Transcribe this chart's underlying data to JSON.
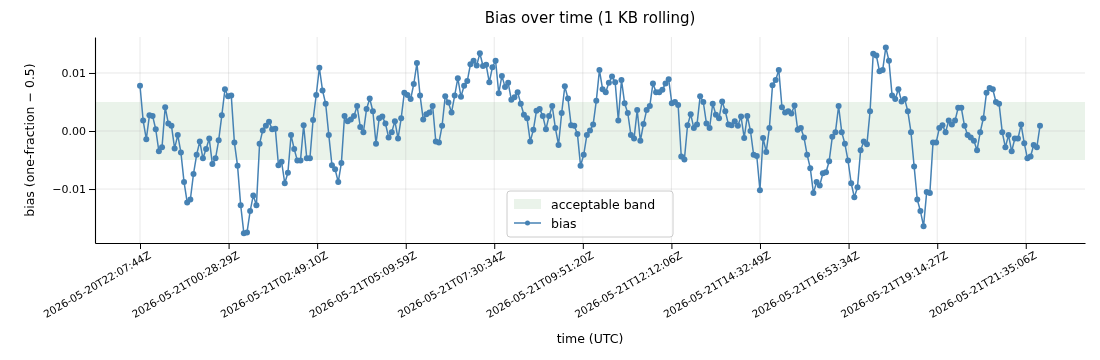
{
  "chart_data": {
    "type": "line",
    "title": "Bias over time (1 KB rolling)",
    "xlabel": "time (UTC)",
    "ylabel": "bias (one-fraction − 0.5)",
    "x": [
      "2026-05-20T22:07:44",
      "2026-05-20T22:12:44",
      "2026-05-20T22:17:44",
      "2026-05-20T22:22:44",
      "2026-05-20T22:27:44",
      "2026-05-20T22:32:44",
      "2026-05-20T22:37:44",
      "2026-05-20T22:42:44",
      "2026-05-20T22:47:44",
      "2026-05-20T22:52:44",
      "2026-05-20T22:57:44",
      "2026-05-20T23:02:44",
      "2026-05-20T23:07:44",
      "2026-05-20T23:12:44",
      "2026-05-20T23:17:44",
      "2026-05-20T23:22:44",
      "2026-05-20T23:27:44",
      "2026-05-20T23:32:44",
      "2026-05-20T23:37:44",
      "2026-05-20T23:42:44",
      "2026-05-20T23:47:44",
      "2026-05-20T23:52:44",
      "2026-05-20T23:57:44",
      "2026-05-21T00:02:44",
      "2026-05-21T00:07:44",
      "2026-05-21T00:12:44",
      "2026-05-21T00:17:44",
      "2026-05-21T00:22:44",
      "2026-05-21T00:27:44",
      "2026-05-21T00:32:44",
      "2026-05-21T00:37:44",
      "2026-05-21T00:42:44",
      "2026-05-21T00:47:44",
      "2026-05-21T00:52:44",
      "2026-05-21T00:57:44",
      "2026-05-21T01:02:44",
      "2026-05-21T01:07:44",
      "2026-05-21T01:12:44",
      "2026-05-21T01:17:44",
      "2026-05-21T01:22:44",
      "2026-05-21T01:27:44",
      "2026-05-21T01:32:44",
      "2026-05-21T01:37:44",
      "2026-05-21T01:42:44",
      "2026-05-21T01:47:44",
      "2026-05-21T01:52:44",
      "2026-05-21T01:57:44",
      "2026-05-21T02:02:44",
      "2026-05-21T02:07:44",
      "2026-05-21T02:12:44",
      "2026-05-21T02:17:44",
      "2026-05-21T02:22:44",
      "2026-05-21T02:27:44",
      "2026-05-21T02:32:44",
      "2026-05-21T02:37:44",
      "2026-05-21T02:42:44",
      "2026-05-21T02:47:44",
      "2026-05-21T02:52:44",
      "2026-05-21T02:57:44",
      "2026-05-21T03:02:44",
      "2026-05-21T03:07:44",
      "2026-05-21T03:12:44",
      "2026-05-21T03:17:44",
      "2026-05-21T03:22:44",
      "2026-05-21T03:27:44",
      "2026-05-21T03:32:44",
      "2026-05-21T03:37:44",
      "2026-05-21T03:42:44",
      "2026-05-21T03:47:44",
      "2026-05-21T03:52:44",
      "2026-05-21T03:57:44",
      "2026-05-21T04:02:44",
      "2026-05-21T04:07:44",
      "2026-05-21T04:12:44",
      "2026-05-21T04:17:44",
      "2026-05-21T04:22:44",
      "2026-05-21T04:27:44",
      "2026-05-21T04:32:44",
      "2026-05-21T04:37:44",
      "2026-05-21T04:42:44",
      "2026-05-21T04:47:44",
      "2026-05-21T04:52:44",
      "2026-05-21T04:57:44",
      "2026-05-21T05:02:44",
      "2026-05-21T05:07:44",
      "2026-05-21T05:12:44",
      "2026-05-21T05:17:44",
      "2026-05-21T05:22:44",
      "2026-05-21T05:27:44",
      "2026-05-21T05:32:44",
      "2026-05-21T05:37:44",
      "2026-05-21T05:42:44",
      "2026-05-21T05:47:44",
      "2026-05-21T05:52:44",
      "2026-05-21T05:57:44",
      "2026-05-21T06:02:44",
      "2026-05-21T06:07:44",
      "2026-05-21T06:12:44",
      "2026-05-21T06:17:44",
      "2026-05-21T06:22:44",
      "2026-05-21T06:27:44",
      "2026-05-21T06:32:44",
      "2026-05-21T06:37:44",
      "2026-05-21T06:42:44",
      "2026-05-21T06:47:44",
      "2026-05-21T06:52:44",
      "2026-05-21T06:57:44",
      "2026-05-21T07:02:44",
      "2026-05-21T07:07:44",
      "2026-05-21T07:12:44",
      "2026-05-21T07:17:44",
      "2026-05-21T07:22:44",
      "2026-05-21T07:27:44",
      "2026-05-21T07:32:44",
      "2026-05-21T07:37:44",
      "2026-05-21T07:42:44",
      "2026-05-21T07:47:44",
      "2026-05-21T07:52:44",
      "2026-05-21T07:57:44",
      "2026-05-21T08:02:44",
      "2026-05-21T08:07:44",
      "2026-05-21T08:12:44",
      "2026-05-21T08:17:44",
      "2026-05-21T08:22:44",
      "2026-05-21T08:27:44",
      "2026-05-21T08:32:44",
      "2026-05-21T08:37:44",
      "2026-05-21T08:42:44",
      "2026-05-21T08:47:44",
      "2026-05-21T08:52:44",
      "2026-05-21T08:57:44",
      "2026-05-21T09:02:44",
      "2026-05-21T09:07:44",
      "2026-05-21T09:12:44",
      "2026-05-21T09:17:44",
      "2026-05-21T09:22:44",
      "2026-05-21T09:27:44",
      "2026-05-21T09:32:44",
      "2026-05-21T09:37:44",
      "2026-05-21T09:42:44",
      "2026-05-21T09:47:44",
      "2026-05-21T09:52:44",
      "2026-05-21T09:57:44",
      "2026-05-21T10:02:44",
      "2026-05-21T10:07:44",
      "2026-05-21T10:12:44",
      "2026-05-21T10:17:44",
      "2026-05-21T10:22:44",
      "2026-05-21T10:27:44",
      "2026-05-21T10:32:44",
      "2026-05-21T10:37:44",
      "2026-05-21T10:42:44",
      "2026-05-21T10:47:44",
      "2026-05-21T10:52:44",
      "2026-05-21T10:57:44",
      "2026-05-21T11:02:44",
      "2026-05-21T11:07:44",
      "2026-05-21T11:12:44",
      "2026-05-21T11:17:44",
      "2026-05-21T11:22:44",
      "2026-05-21T11:27:44",
      "2026-05-21T11:32:44",
      "2026-05-21T11:37:44",
      "2026-05-21T11:42:44",
      "2026-05-21T11:47:44",
      "2026-05-21T11:52:44",
      "2026-05-21T11:57:44",
      "2026-05-21T12:02:44",
      "2026-05-21T12:07:44",
      "2026-05-21T12:12:44",
      "2026-05-21T12:17:44",
      "2026-05-21T12:22:44",
      "2026-05-21T12:27:44",
      "2026-05-21T12:32:44",
      "2026-05-21T12:37:44",
      "2026-05-21T12:42:44",
      "2026-05-21T12:47:44",
      "2026-05-21T12:52:44",
      "2026-05-21T12:57:44",
      "2026-05-21T13:02:44",
      "2026-05-21T13:07:44",
      "2026-05-21T13:12:44",
      "2026-05-21T13:17:44",
      "2026-05-21T13:22:44",
      "2026-05-21T13:27:44",
      "2026-05-21T13:32:44",
      "2026-05-21T13:37:44",
      "2026-05-21T13:42:44",
      "2026-05-21T13:47:44",
      "2026-05-21T13:52:44",
      "2026-05-21T13:57:44",
      "2026-05-21T14:02:44",
      "2026-05-21T14:07:44",
      "2026-05-21T14:12:44",
      "2026-05-21T14:17:44",
      "2026-05-21T14:22:44",
      "2026-05-21T14:27:44",
      "2026-05-21T14:32:44",
      "2026-05-21T14:37:44",
      "2026-05-21T14:42:44",
      "2026-05-21T14:47:44",
      "2026-05-21T14:52:44",
      "2026-05-21T14:57:44",
      "2026-05-21T15:02:44",
      "2026-05-21T15:07:44",
      "2026-05-21T15:12:44",
      "2026-05-21T15:17:44",
      "2026-05-21T15:22:44",
      "2026-05-21T15:27:44",
      "2026-05-21T15:32:44",
      "2026-05-21T15:37:44",
      "2026-05-21T15:42:44",
      "2026-05-21T15:47:44",
      "2026-05-21T15:52:44",
      "2026-05-21T15:57:44",
      "2026-05-21T16:02:44",
      "2026-05-21T16:07:44",
      "2026-05-21T16:12:44",
      "2026-05-21T16:17:44",
      "2026-05-21T16:22:44",
      "2026-05-21T16:27:44",
      "2026-05-21T16:32:44",
      "2026-05-21T16:37:44",
      "2026-05-21T16:42:44",
      "2026-05-21T16:47:44",
      "2026-05-21T16:52:44",
      "2026-05-21T16:57:44",
      "2026-05-21T17:02:44",
      "2026-05-21T17:07:44",
      "2026-05-21T17:12:44",
      "2026-05-21T17:17:44",
      "2026-05-21T17:22:44",
      "2026-05-21T17:27:44",
      "2026-05-21T17:32:44",
      "2026-05-21T17:37:44",
      "2026-05-21T17:42:44",
      "2026-05-21T17:47:44",
      "2026-05-21T17:52:44",
      "2026-05-21T17:57:44",
      "2026-05-21T18:02:44",
      "2026-05-21T18:07:44",
      "2026-05-21T18:12:44",
      "2026-05-21T18:17:44",
      "2026-05-21T18:22:44",
      "2026-05-21T18:27:44",
      "2026-05-21T18:32:44",
      "2026-05-21T18:37:44",
      "2026-05-21T18:42:44",
      "2026-05-21T18:47:44",
      "2026-05-21T18:52:44",
      "2026-05-21T18:57:44",
      "2026-05-21T19:02:44",
      "2026-05-21T19:07:44",
      "2026-05-21T19:12:44",
      "2026-05-21T19:17:44",
      "2026-05-21T19:22:44",
      "2026-05-21T19:27:44",
      "2026-05-21T19:32:44",
      "2026-05-21T19:37:44",
      "2026-05-21T19:42:44",
      "2026-05-21T19:47:44",
      "2026-05-21T19:52:44",
      "2026-05-21T19:57:44",
      "2026-05-21T20:02:44",
      "2026-05-21T20:07:44",
      "2026-05-21T20:12:44",
      "2026-05-21T20:17:44",
      "2026-05-21T20:22:44",
      "2026-05-21T20:27:44",
      "2026-05-21T20:32:44",
      "2026-05-21T20:37:44",
      "2026-05-21T20:42:44",
      "2026-05-21T20:47:44",
      "2026-05-21T20:52:44",
      "2026-05-21T20:57:44",
      "2026-05-21T21:02:44",
      "2026-05-21T21:07:44",
      "2026-05-21T21:12:44",
      "2026-05-21T21:17:44",
      "2026-05-21T21:22:44",
      "2026-05-21T21:27:44",
      "2026-05-21T21:32:44",
      "2026-05-21T21:37:44",
      "2026-05-21T21:42:44",
      "2026-05-21T21:47:44",
      "2026-05-21T21:52:44",
      "2026-05-21T21:57:44"
    ],
    "series": [
      {
        "name": "bias",
        "color": "#4682b4",
        "values": [
          0.0078,
          0.0018,
          -0.0014,
          0.0027,
          0.0026,
          0.0003,
          -0.0035,
          -0.0028,
          0.0041,
          0.0013,
          0.0009,
          -0.003,
          -0.0007,
          -0.0037,
          -0.0088,
          -0.0123,
          -0.0118,
          -0.0074,
          -0.0041,
          -0.0018,
          -0.0047,
          -0.0031,
          -0.0013,
          -0.0057,
          -0.0047,
          -0.0016,
          0.0027,
          0.0072,
          0.006,
          0.0061,
          -0.002,
          -0.006,
          -0.0128,
          -0.0176,
          -0.0175,
          -0.0138,
          -0.0111,
          -0.0128,
          -0.0022,
          0.0001,
          0.0009,
          0.0016,
          0.0003,
          0.0004,
          -0.0059,
          -0.0053,
          -0.009,
          -0.0072,
          -0.0007,
          -0.0031,
          -0.0051,
          -0.0051,
          0.001,
          -0.0047,
          -0.0047,
          0.0019,
          0.0062,
          0.0109,
          0.007,
          0.0047,
          -0.0007,
          -0.0059,
          -0.0066,
          -0.0088,
          -0.0055,
          0.0026,
          0.0017,
          0.002,
          0.0026,
          0.0043,
          0.0007,
          -0.0002,
          0.0038,
          0.0056,
          0.0034,
          -0.0022,
          0.0022,
          0.0025,
          0.0013,
          -0.0011,
          -0.0002,
          0.0017,
          -0.0013,
          0.0022,
          0.0066,
          0.0062,
          0.0055,
          0.0081,
          0.0117,
          0.0061,
          0.002,
          0.0029,
          0.0032,
          0.0043,
          -0.0018,
          -0.002,
          0.0009,
          0.006,
          0.0049,
          0.0032,
          0.0061,
          0.0091,
          0.0059,
          0.0078,
          0.0086,
          0.0115,
          0.0121,
          0.0113,
          0.0134,
          0.0112,
          0.0114,
          0.0084,
          0.011,
          0.0121,
          0.0065,
          0.0095,
          0.0076,
          0.0083,
          0.0054,
          0.0058,
          0.0067,
          0.0047,
          0.0028,
          0.0022,
          -0.0018,
          0.0002,
          0.0035,
          0.0038,
          0.0026,
          0.0003,
          0.0026,
          0.0043,
          0.0005,
          -0.0024,
          0.0031,
          0.0077,
          0.0056,
          0.001,
          0.0009,
          -0.0005,
          -0.006,
          -0.0041,
          -0.0007,
          0.0001,
          0.0011,
          0.0052,
          0.0105,
          0.0072,
          0.0067,
          0.0083,
          0.0094,
          0.0084,
          0.0018,
          0.0088,
          0.0048,
          0.0031,
          -0.0007,
          -0.0013,
          0.0036,
          -0.0017,
          0.0012,
          0.0036,
          0.0043,
          0.0082,
          0.0067,
          0.0067,
          0.0071,
          0.0082,
          0.0089,
          0.0048,
          0.005,
          0.0045,
          -0.0044,
          -0.0049,
          0.001,
          0.0029,
          0.0005,
          0.0011,
          0.006,
          0.005,
          0.0013,
          0.0005,
          0.0047,
          0.0028,
          0.0022,
          0.0051,
          0.0034,
          0.0011,
          0.001,
          0.0017,
          0.0009,
          0.0025,
          -0.0012,
          0.0026,
          0,
          -0.0041,
          -0.0043,
          -0.0102,
          -0.0012,
          -0.0036,
          0.0005,
          0.0079,
          0.0088,
          0.0105,
          0.0041,
          0.0032,
          0.0034,
          0.003,
          0.0044,
          0.0002,
          0.0005,
          -0.0011,
          -0.0041,
          -0.0064,
          -0.0107,
          -0.0088,
          -0.0094,
          -0.0073,
          -0.0071,
          -0.0052,
          -0.001,
          -0.0002,
          0.0043,
          -0.0002,
          -0.0022,
          -0.0051,
          -0.009,
          -0.0114,
          -0.0097,
          -0.0033,
          -0.0018,
          -0.0023,
          0.0034,
          0.0133,
          0.013,
          0.0103,
          0.0105,
          0.0144,
          0.0121,
          0.0061,
          0.0055,
          0.0072,
          0.0051,
          0.0055,
          0.0034,
          -0.0002,
          -0.0061,
          -0.0118,
          -0.0138,
          -0.0164,
          -0.0105,
          -0.0107,
          -0.002,
          -0.002,
          0.0005,
          0.001,
          -0.0002,
          0.0018,
          0.0011,
          0.0018,
          0.004,
          0.004,
          0.0009,
          -0.0007,
          -0.0011,
          -0.0017,
          -0.0033,
          -0.0002,
          0.0022,
          0.0066,
          0.0074,
          0.0072,
          0.005,
          0.0047,
          -0.0002,
          -0.0028,
          -0.0007,
          -0.0035,
          -0.0013,
          -0.0013,
          0.0011,
          -0.0021,
          -0.0047,
          -0.0044,
          -0.0024,
          -0.0028,
          0.0009
        ]
      }
    ],
    "xlim": [
      "2026-05-20T20:56:14",
      "2026-05-21T23:09:14"
    ],
    "xticks": [
      {
        "value": "2026-05-20T22:07:44",
        "label": "2026-05-20T22:07:44Z"
      },
      {
        "value": "2026-05-21T00:28:29",
        "label": "2026-05-21T00:28:29Z"
      },
      {
        "value": "2026-05-21T02:49:10",
        "label": "2026-05-21T02:49:10Z"
      },
      {
        "value": "2026-05-21T05:09:59",
        "label": "2026-05-21T05:09:59Z"
      },
      {
        "value": "2026-05-21T07:30:34",
        "label": "2026-05-21T07:30:34Z"
      },
      {
        "value": "2026-05-21T09:51:20",
        "label": "2026-05-21T09:51:20Z"
      },
      {
        "value": "2026-05-21T12:12:06",
        "label": "2026-05-21T12:12:06Z"
      },
      {
        "value": "2026-05-21T14:32:49",
        "label": "2026-05-21T14:32:49Z"
      },
      {
        "value": "2026-05-21T16:53:34",
        "label": "2026-05-21T16:53:34Z"
      },
      {
        "value": "2026-05-21T19:14:27",
        "label": "2026-05-21T19:14:27Z"
      },
      {
        "value": "2026-05-21T21:35:06",
        "label": "2026-05-21T21:35:06Z"
      }
    ],
    "ylim": [
      -0.0193,
      0.0162
    ],
    "yticks": [
      {
        "value": -0.01,
        "label": "−0.01"
      },
      {
        "value": 0,
        "label": "0.00"
      },
      {
        "value": 0.01,
        "label": "0.01"
      }
    ],
    "bands": [
      {
        "axis": "y",
        "from": -0.005,
        "to": 0.005,
        "label": "acceptable band",
        "color": "#2e8b2e"
      }
    ],
    "grid": true,
    "legend": "bottom",
    "marker": "circle",
    "line_style": "solid"
  }
}
